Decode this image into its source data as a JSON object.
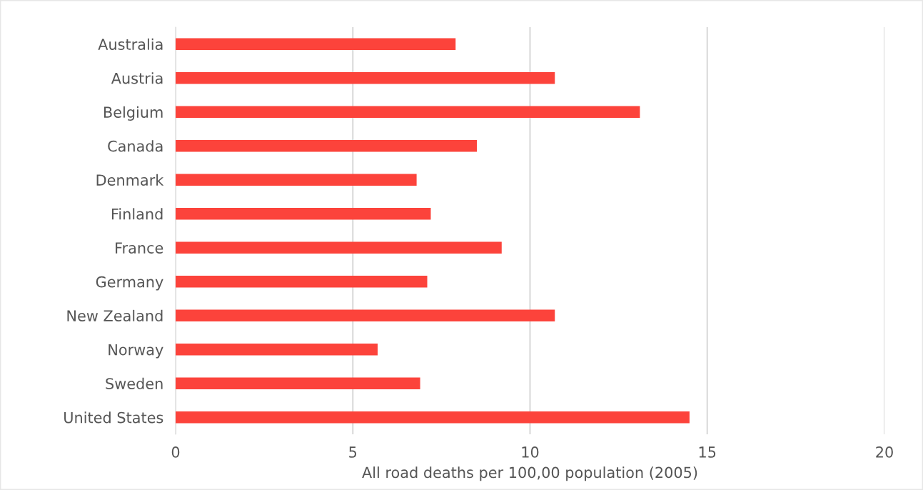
{
  "chart_data": {
    "type": "bar",
    "orientation": "horizontal",
    "xlabel": "All road deaths per 100,00 population (2005)",
    "categories": [
      "Australia",
      "Austria",
      "Belgium",
      "Canada",
      "Denmark",
      "Finland",
      "France",
      "Germany",
      "New Zealand",
      "Norway",
      "Sweden",
      "United States"
    ],
    "values": [
      7.9,
      10.7,
      13.1,
      8.5,
      6.8,
      7.2,
      9.2,
      7.1,
      10.7,
      5.7,
      6.9,
      14.5
    ],
    "color": "#fc433b",
    "xlim": [
      0,
      20
    ],
    "xticks": [
      0,
      5,
      10,
      15,
      20
    ],
    "grid": "x"
  }
}
